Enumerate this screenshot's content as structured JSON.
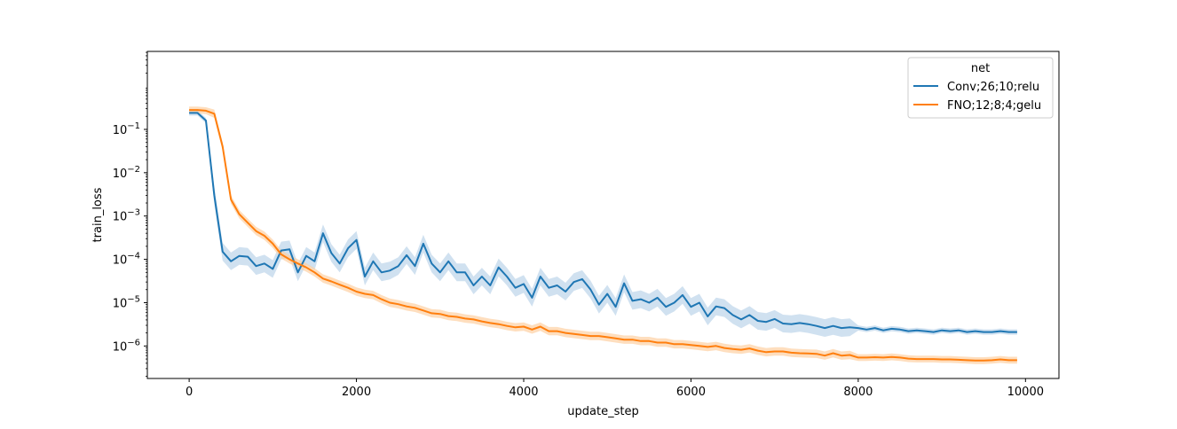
{
  "chart_data": {
    "type": "line",
    "title": "",
    "xlabel": "update_step",
    "ylabel": "train_loss",
    "xlim": [
      -500,
      10400
    ],
    "ylim_log10": [
      -6.75,
      0.8
    ],
    "yscale": "log",
    "grid": false,
    "x_ticks": [
      0,
      2000,
      4000,
      6000,
      8000,
      10000
    ],
    "x_tick_labels": [
      "0",
      "2000",
      "4000",
      "6000",
      "8000",
      "10000"
    ],
    "y_tick_exponents": [
      -6,
      -5,
      -4,
      -3,
      -2,
      -1
    ],
    "y_tick_base": "10",
    "legend": {
      "title": "net",
      "placement": "top-right"
    },
    "series": [
      {
        "name": "Conv;26;10;relu",
        "color": "#1f77b4",
        "band_color": "#a9c8e3",
        "points": [
          [
            0,
            0.24
          ],
          [
            100,
            0.24
          ],
          [
            200,
            0.16
          ],
          [
            300,
            0.003
          ],
          [
            400,
            0.00015
          ],
          [
            500,
            9e-05
          ],
          [
            600,
            0.00012
          ],
          [
            700,
            0.000115
          ],
          [
            800,
            7e-05
          ],
          [
            900,
            8e-05
          ],
          [
            1000,
            6e-05
          ],
          [
            1100,
            0.00016
          ],
          [
            1200,
            0.00017
          ],
          [
            1300,
            5e-05
          ],
          [
            1400,
            0.00012
          ],
          [
            1500,
            9e-05
          ],
          [
            1600,
            0.0004
          ],
          [
            1700,
            0.00014
          ],
          [
            1800,
            8e-05
          ],
          [
            1900,
            0.00018
          ],
          [
            2000,
            0.00028
          ],
          [
            2100,
            4e-05
          ],
          [
            2200,
            9e-05
          ],
          [
            2300,
            5e-05
          ],
          [
            2400,
            5.5e-05
          ],
          [
            2500,
            7e-05
          ],
          [
            2600,
            0.000125
          ],
          [
            2700,
            7e-05
          ],
          [
            2800,
            0.00023
          ],
          [
            2900,
            8e-05
          ],
          [
            3000,
            5e-05
          ],
          [
            3100,
            9e-05
          ],
          [
            3200,
            5e-05
          ],
          [
            3300,
            5e-05
          ],
          [
            3400,
            2.5e-05
          ],
          [
            3500,
            4e-05
          ],
          [
            3600,
            2.5e-05
          ],
          [
            3700,
            6.5e-05
          ],
          [
            3800,
            4e-05
          ],
          [
            3900,
            2.2e-05
          ],
          [
            4000,
            2.7e-05
          ],
          [
            4100,
            1.3e-05
          ],
          [
            4200,
            4e-05
          ],
          [
            4300,
            2.2e-05
          ],
          [
            4400,
            2.5e-05
          ],
          [
            4500,
            1.8e-05
          ],
          [
            4600,
            3e-05
          ],
          [
            4700,
            3.5e-05
          ],
          [
            4800,
            2e-05
          ],
          [
            4900,
            9e-06
          ],
          [
            5000,
            1.6e-05
          ],
          [
            5100,
            8e-06
          ],
          [
            5200,
            2.8e-05
          ],
          [
            5300,
            1.1e-05
          ],
          [
            5400,
            1.2e-05
          ],
          [
            5500,
            1e-05
          ],
          [
            5600,
            1.3e-05
          ],
          [
            5700,
            8e-06
          ],
          [
            5800,
            1e-05
          ],
          [
            5900,
            1.5e-05
          ],
          [
            6000,
            8e-06
          ],
          [
            6100,
            1e-05
          ],
          [
            6200,
            4.8e-06
          ],
          [
            6300,
            8.2e-06
          ],
          [
            6400,
            7.5e-06
          ],
          [
            6500,
            5.2e-06
          ],
          [
            6600,
            4.1e-06
          ],
          [
            6700,
            5.2e-06
          ],
          [
            6800,
            3.8e-06
          ],
          [
            6900,
            3.6e-06
          ],
          [
            7000,
            4.2e-06
          ],
          [
            7100,
            3.3e-06
          ],
          [
            7200,
            3.2e-06
          ],
          [
            7300,
            3.4e-06
          ],
          [
            7400,
            3.2e-06
          ],
          [
            7500,
            2.9e-06
          ],
          [
            7600,
            2.6e-06
          ],
          [
            7700,
            2.9e-06
          ],
          [
            7800,
            2.6e-06
          ],
          [
            7900,
            2.7e-06
          ],
          [
            8000,
            2.6e-06
          ],
          [
            8100,
            2.4e-06
          ],
          [
            8200,
            2.6e-06
          ],
          [
            8300,
            2.3e-06
          ],
          [
            8400,
            2.5e-06
          ],
          [
            8500,
            2.4e-06
          ],
          [
            8600,
            2.2e-06
          ],
          [
            8700,
            2.3e-06
          ],
          [
            8800,
            2.2e-06
          ],
          [
            8900,
            2.1e-06
          ],
          [
            9000,
            2.3e-06
          ],
          [
            9100,
            2.2e-06
          ],
          [
            9200,
            2.3e-06
          ],
          [
            9300,
            2.1e-06
          ],
          [
            9400,
            2.2e-06
          ],
          [
            9500,
            2.1e-06
          ],
          [
            9600,
            2.1e-06
          ],
          [
            9700,
            2.2e-06
          ],
          [
            9800,
            2.1e-06
          ],
          [
            9900,
            2.1e-06
          ]
        ]
      },
      {
        "name": "FNO;12;8;4;gelu",
        "color": "#ff7f0e",
        "band_color": "#fdd0a2",
        "points": [
          [
            0,
            0.28
          ],
          [
            100,
            0.28
          ],
          [
            200,
            0.27
          ],
          [
            300,
            0.23
          ],
          [
            400,
            0.04
          ],
          [
            500,
            0.0024
          ],
          [
            600,
            0.0011
          ],
          [
            700,
            0.0007
          ],
          [
            800,
            0.00045
          ],
          [
            900,
            0.00035
          ],
          [
            1000,
            0.00023
          ],
          [
            1100,
            0.00013
          ],
          [
            1200,
            0.0001
          ],
          [
            1300,
            8e-05
          ],
          [
            1400,
            6.5e-05
          ],
          [
            1500,
            5e-05
          ],
          [
            1600,
            3.6e-05
          ],
          [
            1700,
            3.1e-05
          ],
          [
            1800,
            2.6e-05
          ],
          [
            1900,
            2.2e-05
          ],
          [
            2000,
            1.8e-05
          ],
          [
            2100,
            1.6e-05
          ],
          [
            2200,
            1.5e-05
          ],
          [
            2300,
            1.2e-05
          ],
          [
            2400,
            1e-05
          ],
          [
            2500,
            9.2e-06
          ],
          [
            2600,
            8.2e-06
          ],
          [
            2700,
            7.6e-06
          ],
          [
            2800,
            6.6e-06
          ],
          [
            2900,
            5.7e-06
          ],
          [
            3000,
            5.5e-06
          ],
          [
            3100,
            4.9e-06
          ],
          [
            3200,
            4.7e-06
          ],
          [
            3300,
            4.3e-06
          ],
          [
            3400,
            4.1e-06
          ],
          [
            3500,
            3.7e-06
          ],
          [
            3600,
            3.4e-06
          ],
          [
            3700,
            3.2e-06
          ],
          [
            3800,
            2.9e-06
          ],
          [
            3900,
            2.7e-06
          ],
          [
            4000,
            2.8e-06
          ],
          [
            4100,
            2.4e-06
          ],
          [
            4200,
            2.8e-06
          ],
          [
            4300,
            2.2e-06
          ],
          [
            4400,
            2.2e-06
          ],
          [
            4500,
            2e-06
          ],
          [
            4600,
            1.9e-06
          ],
          [
            4700,
            1.8e-06
          ],
          [
            4800,
            1.7e-06
          ],
          [
            4900,
            1.7e-06
          ],
          [
            5000,
            1.6e-06
          ],
          [
            5100,
            1.5e-06
          ],
          [
            5200,
            1.4e-06
          ],
          [
            5300,
            1.4e-06
          ],
          [
            5400,
            1.3e-06
          ],
          [
            5500,
            1.3e-06
          ],
          [
            5600,
            1.2e-06
          ],
          [
            5700,
            1.2e-06
          ],
          [
            5800,
            1.1e-06
          ],
          [
            5900,
            1.1e-06
          ],
          [
            6000,
            1.05e-06
          ],
          [
            6100,
            1e-06
          ],
          [
            6200,
            9.5e-07
          ],
          [
            6300,
            1e-06
          ],
          [
            6400,
            9e-07
          ],
          [
            6500,
            8.5e-07
          ],
          [
            6600,
            8.2e-07
          ],
          [
            6700,
            8.8e-07
          ],
          [
            6800,
            7.8e-07
          ],
          [
            6900,
            7.2e-07
          ],
          [
            7000,
            7.5e-07
          ],
          [
            7100,
            7.5e-07
          ],
          [
            7200,
            7e-07
          ],
          [
            7300,
            6.8e-07
          ],
          [
            7400,
            6.7e-07
          ],
          [
            7500,
            6.6e-07
          ],
          [
            7600,
            6e-07
          ],
          [
            7700,
            6.8e-07
          ],
          [
            7800,
            6e-07
          ],
          [
            7900,
            6.2e-07
          ],
          [
            8000,
            5.4e-07
          ],
          [
            8100,
            5.4e-07
          ],
          [
            8200,
            5.5e-07
          ],
          [
            8300,
            5.4e-07
          ],
          [
            8400,
            5.6e-07
          ],
          [
            8500,
            5.4e-07
          ],
          [
            8600,
            5.1e-07
          ],
          [
            8700,
            5e-07
          ],
          [
            8800,
            5e-07
          ],
          [
            8900,
            5e-07
          ],
          [
            9000,
            4.9e-07
          ],
          [
            9100,
            4.9e-07
          ],
          [
            9200,
            4.8e-07
          ],
          [
            9300,
            4.7e-07
          ],
          [
            9400,
            4.6e-07
          ],
          [
            9500,
            4.6e-07
          ],
          [
            9600,
            4.7e-07
          ],
          [
            9700,
            4.9e-07
          ],
          [
            9800,
            4.7e-07
          ],
          [
            9900,
            4.7e-07
          ]
        ]
      }
    ]
  }
}
